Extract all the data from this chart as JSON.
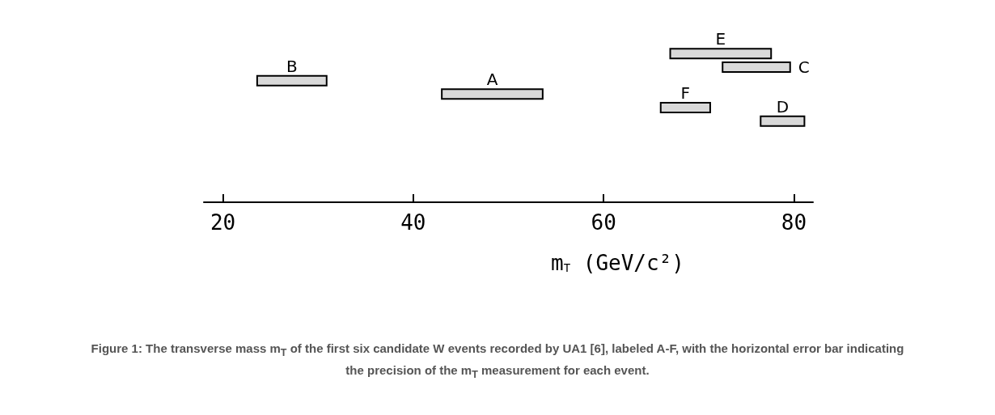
{
  "chart_data": {
    "type": "bar",
    "orientation": "horizontal",
    "categories": [
      null,
      null,
      null,
      null,
      null,
      null
    ],
    "base": [
      67.0,
      72.5,
      23.6,
      43.0,
      66.0,
      76.5
    ],
    "values": [
      10.6,
      7.1,
      7.3,
      10.6,
      5.2,
      4.6
    ],
    "value_labels": [
      "E",
      "C",
      "B",
      "A",
      "F",
      "D"
    ],
    "colors": [
      "#d9d9d9",
      "#d9d9d9",
      "#d9d9d9",
      "#d9d9d9",
      "#d9d9d9",
      "#d9d9d9"
    ],
    "xlim": [
      18,
      82
    ],
    "xticks": [
      20,
      40,
      60,
      80
    ],
    "xlabel": "m$_{T}$ (GeV/c²)",
    "tick_labels": "x",
    "grid": false,
    "annotations": [
      "Figure 1: The transverse mass m$_{T}$ of the first six candidate W events recorded by UA1 [6], labeled A-F, with the horizontal error bar indicating the precision of the m$_{T}$ measurement for each event."
    ]
  }
}
